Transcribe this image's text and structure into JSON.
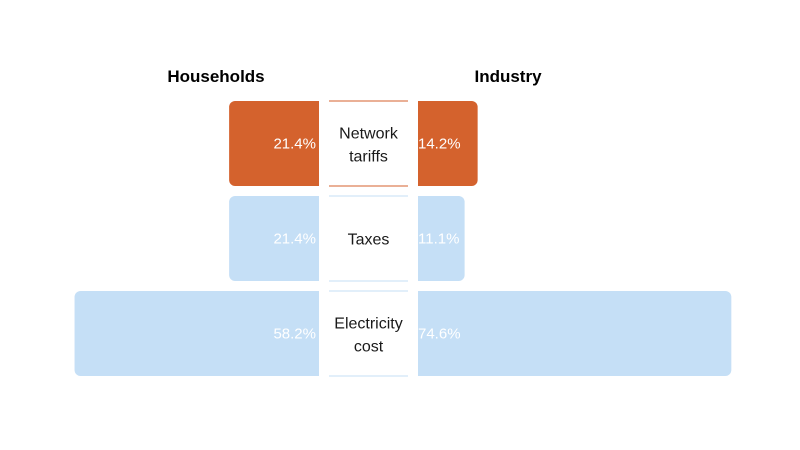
{
  "chart_data": {
    "type": "bar",
    "subtype": "butterfly",
    "left_header": "Households",
    "right_header": "Industry",
    "categories": [
      [
        "Network",
        "tariffs"
      ],
      [
        "Taxes"
      ],
      [
        "Electricity",
        "cost"
      ]
    ],
    "series": [
      {
        "name": "Households",
        "values": [
          21.4,
          21.4,
          58.2
        ],
        "labels": [
          "21.4%",
          "21.4%",
          "58.2%"
        ]
      },
      {
        "name": "Industry",
        "values": [
          14.2,
          11.1,
          74.6
        ],
        "labels": [
          "14.2%",
          "11.1%",
          "74.6%"
        ]
      }
    ],
    "colors": [
      "#d4622d",
      "#c5dff6",
      "#c5dff6"
    ],
    "divider_colors": [
      "#d4622d",
      "#c5dff6",
      "#c5dff6"
    ],
    "value_label_color": "#ffffff"
  }
}
